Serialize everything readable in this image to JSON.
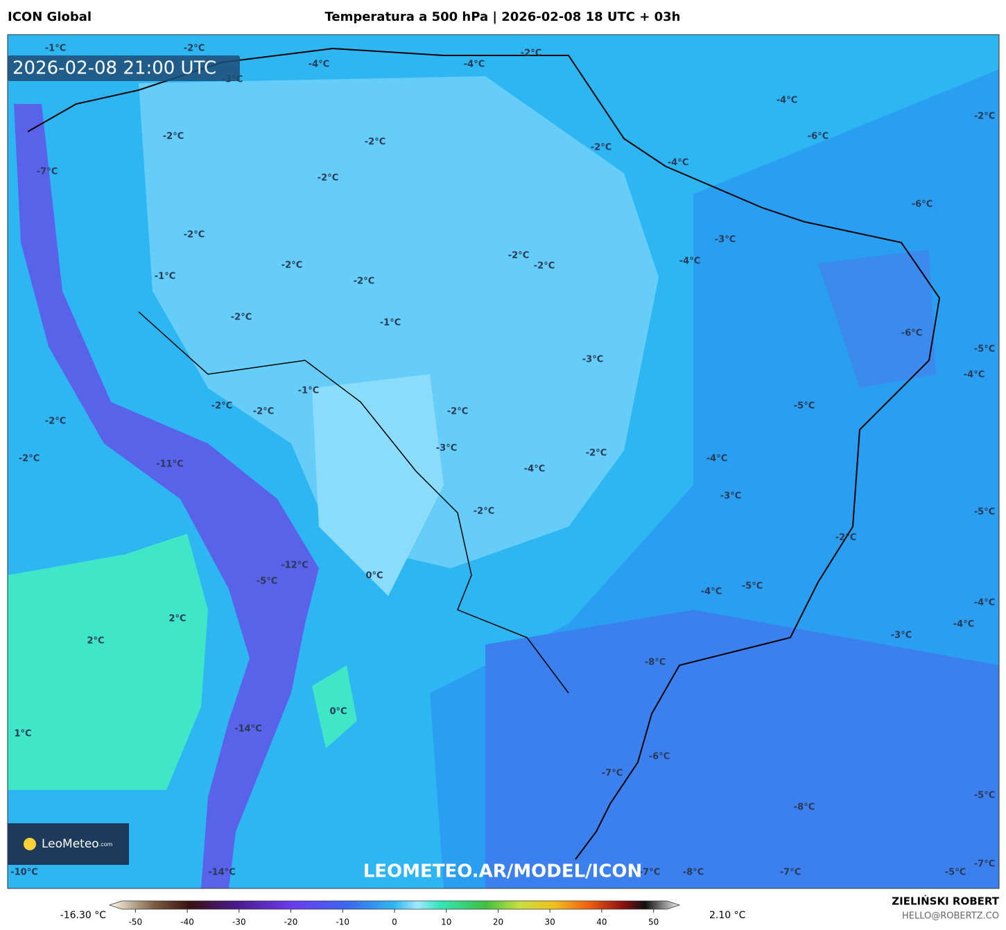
{
  "header": {
    "model": "ICON Global",
    "title": "Temperatura a 500 hPa | 2026-02-08 18 UTC + 03h"
  },
  "map": {
    "valid_time": "2026-02-08 21:00 UTC",
    "watermark": "LEOMETEO.AR/MODEL/ICON",
    "logo": "LeoMeteo",
    "logo_suffix": ".com",
    "labels": [
      "-1°C",
      "-2°C",
      "-4°C",
      "-4°C",
      "-2°C",
      "-3°C",
      "-4°C",
      "-2°C",
      "-2°C",
      "-2°C",
      "-2°C",
      "-6°C",
      "-4°C",
      "-7°C",
      "-2°C",
      "-6°C",
      "-2°C",
      "-3°C",
      "-2°C",
      "-2°C",
      "-4°C",
      "-2°C",
      "-1°C",
      "-2°C",
      "-2°C",
      "-1°C",
      "-6°C",
      "-5°C",
      "-3°C",
      "-4°C",
      "-1°C",
      "-2°C",
      "-2°C",
      "-5°C",
      "-2°C",
      "-2°C",
      "-3°C",
      "-2°C",
      "-4°C",
      "-2°C",
      "-11°C",
      "-4°C",
      "-3°C",
      "-2°C",
      "-5°C",
      "-2°C",
      "-12°C",
      "0°C",
      "-5°C",
      "-5°C",
      "-4°C",
      "-4°C",
      "2°C",
      "-4°C",
      "-3°C",
      "2°C",
      "-8°C",
      "0°C",
      "-14°C",
      "1°C",
      "-6°C",
      "-7°C",
      "-5°C",
      "-8°C",
      "-7°C",
      "-10°C",
      "-14°C",
      "-7°C",
      "-8°C",
      "-7°C",
      "-5°C"
    ]
  },
  "colorbar": {
    "min_label": "-16.30 °C",
    "max_label": "2.10 °C",
    "lim": [
      -55,
      55
    ],
    "ticks": [
      -50,
      -40,
      -30,
      -20,
      -10,
      0,
      10,
      20,
      30,
      40,
      50
    ]
  },
  "footer": {
    "author": "ZIELIŃSKI ROBERT",
    "email": "HELLO@ROBERTZ.CO"
  }
}
